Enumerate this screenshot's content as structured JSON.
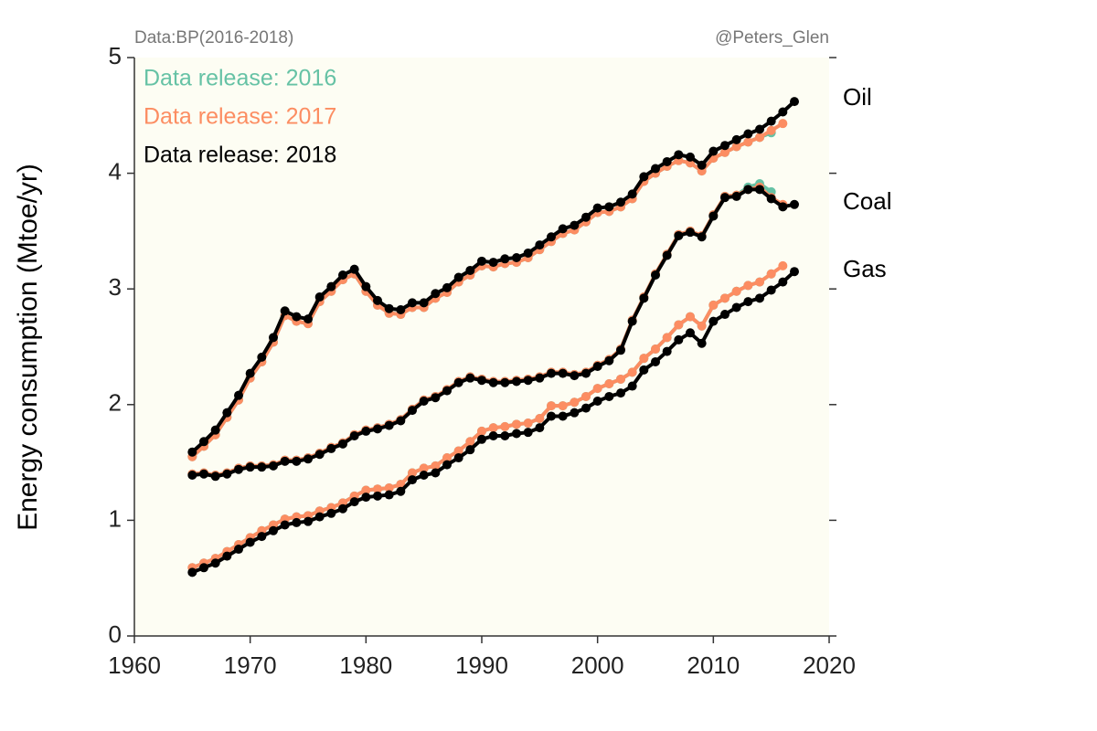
{
  "chart_data": {
    "type": "line",
    "source": "Data:BP(2016-2018)",
    "credit": "@Peters_Glen",
    "ylabel": "Energy consumption (Mtoe/yr)",
    "fuels": [
      "Oil",
      "Coal",
      "Gas"
    ],
    "x": [
      1965,
      1966,
      1967,
      1968,
      1969,
      1970,
      1971,
      1972,
      1973,
      1974,
      1975,
      1976,
      1977,
      1978,
      1979,
      1980,
      1981,
      1982,
      1983,
      1984,
      1985,
      1986,
      1987,
      1988,
      1989,
      1990,
      1991,
      1992,
      1993,
      1994,
      1995,
      1996,
      1997,
      1998,
      1999,
      2000,
      2001,
      2002,
      2003,
      2004,
      2005,
      2006,
      2007,
      2008,
      2009,
      2010,
      2011,
      2012,
      2013,
      2014,
      2015,
      2016,
      2017
    ],
    "series": [
      {
        "name": "Data release: 2016",
        "color": "#66c2a5",
        "values": [
          [
            1.55,
            1.64,
            1.74,
            1.89,
            2.04,
            2.23,
            2.37,
            2.54,
            2.77,
            2.72,
            2.7,
            2.89,
            2.98,
            3.08,
            3.13,
            2.98,
            2.86,
            2.79,
            2.78,
            2.84,
            2.84,
            2.92,
            2.97,
            3.06,
            3.12,
            3.2,
            3.19,
            3.22,
            3.23,
            3.27,
            3.34,
            3.41,
            3.48,
            3.51,
            3.58,
            3.66,
            3.67,
            3.71,
            3.78,
            3.93,
            4.0,
            4.06,
            4.11,
            4.09,
            4.02,
            4.13,
            4.18,
            4.23,
            4.27,
            4.31,
            4.35,
            null,
            null
          ],
          [
            1.4,
            1.41,
            1.39,
            1.41,
            1.45,
            1.47,
            1.47,
            1.48,
            1.52,
            1.52,
            1.54,
            1.58,
            1.63,
            1.67,
            1.74,
            1.78,
            1.8,
            1.83,
            1.87,
            1.96,
            2.04,
            2.07,
            2.13,
            2.2,
            2.24,
            2.22,
            2.2,
            2.2,
            2.21,
            2.22,
            2.24,
            2.28,
            2.28,
            2.26,
            2.28,
            2.34,
            2.39,
            2.48,
            2.73,
            2.93,
            3.13,
            3.3,
            3.47,
            3.5,
            3.46,
            3.64,
            3.8,
            3.81,
            3.88,
            3.91,
            3.84,
            null,
            null
          ],
          [
            0.59,
            0.63,
            0.67,
            0.73,
            0.79,
            0.85,
            0.91,
            0.96,
            1.01,
            1.03,
            1.04,
            1.08,
            1.11,
            1.15,
            1.21,
            1.26,
            1.27,
            1.28,
            1.31,
            1.41,
            1.45,
            1.47,
            1.54,
            1.6,
            1.68,
            1.77,
            1.8,
            1.81,
            1.83,
            1.84,
            1.88,
            1.99,
            1.99,
            2.02,
            2.07,
            2.14,
            2.18,
            2.22,
            2.28,
            2.4,
            2.48,
            2.58,
            2.69,
            2.76,
            2.68,
            2.86,
            2.92,
            2.98,
            3.03,
            3.06,
            3.13,
            null,
            null
          ]
        ]
      },
      {
        "name": "Data release: 2017",
        "color": "#fc8d62",
        "values": [
          [
            1.55,
            1.64,
            1.74,
            1.89,
            2.04,
            2.23,
            2.37,
            2.54,
            2.77,
            2.72,
            2.7,
            2.89,
            2.98,
            3.08,
            3.13,
            2.98,
            2.86,
            2.79,
            2.78,
            2.84,
            2.84,
            2.92,
            2.97,
            3.06,
            3.12,
            3.2,
            3.19,
            3.22,
            3.23,
            3.27,
            3.34,
            3.41,
            3.48,
            3.51,
            3.58,
            3.66,
            3.67,
            3.71,
            3.78,
            3.93,
            4.0,
            4.06,
            4.11,
            4.09,
            4.02,
            4.13,
            4.18,
            4.23,
            4.27,
            4.31,
            4.37,
            4.43,
            null
          ],
          [
            1.4,
            1.41,
            1.39,
            1.41,
            1.45,
            1.47,
            1.47,
            1.48,
            1.52,
            1.52,
            1.54,
            1.58,
            1.63,
            1.67,
            1.74,
            1.78,
            1.8,
            1.83,
            1.87,
            1.96,
            2.04,
            2.07,
            2.13,
            2.2,
            2.24,
            2.22,
            2.2,
            2.2,
            2.21,
            2.22,
            2.24,
            2.28,
            2.28,
            2.26,
            2.28,
            2.34,
            2.39,
            2.48,
            2.73,
            2.93,
            3.13,
            3.3,
            3.47,
            3.5,
            3.46,
            3.64,
            3.8,
            3.81,
            3.86,
            3.88,
            3.79,
            3.73,
            null
          ],
          [
            0.59,
            0.63,
            0.67,
            0.73,
            0.79,
            0.85,
            0.91,
            0.96,
            1.01,
            1.03,
            1.04,
            1.08,
            1.11,
            1.15,
            1.21,
            1.26,
            1.27,
            1.28,
            1.31,
            1.41,
            1.45,
            1.47,
            1.54,
            1.6,
            1.68,
            1.77,
            1.8,
            1.81,
            1.83,
            1.84,
            1.88,
            1.99,
            1.99,
            2.02,
            2.07,
            2.14,
            2.18,
            2.22,
            2.28,
            2.4,
            2.48,
            2.58,
            2.69,
            2.76,
            2.68,
            2.86,
            2.92,
            2.98,
            3.03,
            3.06,
            3.13,
            3.2,
            null
          ]
        ]
      },
      {
        "name": "Data release: 2018",
        "color": "#000000",
        "values": [
          [
            1.59,
            1.68,
            1.78,
            1.93,
            2.08,
            2.27,
            2.41,
            2.58,
            2.81,
            2.76,
            2.74,
            2.93,
            3.02,
            3.12,
            3.17,
            3.02,
            2.9,
            2.83,
            2.82,
            2.88,
            2.88,
            2.96,
            3.01,
            3.1,
            3.16,
            3.24,
            3.23,
            3.26,
            3.27,
            3.31,
            3.38,
            3.45,
            3.52,
            3.55,
            3.62,
            3.7,
            3.71,
            3.75,
            3.82,
            3.97,
            4.04,
            4.1,
            4.16,
            4.14,
            4.07,
            4.19,
            4.24,
            4.29,
            4.34,
            4.38,
            4.45,
            4.53,
            4.62
          ],
          [
            1.39,
            1.4,
            1.38,
            1.4,
            1.44,
            1.46,
            1.46,
            1.47,
            1.51,
            1.51,
            1.53,
            1.57,
            1.62,
            1.66,
            1.73,
            1.77,
            1.79,
            1.82,
            1.86,
            1.95,
            2.03,
            2.06,
            2.12,
            2.19,
            2.23,
            2.21,
            2.19,
            2.19,
            2.2,
            2.21,
            2.23,
            2.27,
            2.27,
            2.25,
            2.27,
            2.33,
            2.38,
            2.47,
            2.72,
            2.92,
            3.12,
            3.29,
            3.46,
            3.49,
            3.45,
            3.63,
            3.79,
            3.8,
            3.86,
            3.86,
            3.78,
            3.71,
            3.73
          ],
          [
            0.55,
            0.59,
            0.63,
            0.69,
            0.75,
            0.81,
            0.86,
            0.91,
            0.96,
            0.98,
            0.99,
            1.03,
            1.06,
            1.1,
            1.16,
            1.2,
            1.21,
            1.22,
            1.25,
            1.35,
            1.39,
            1.41,
            1.48,
            1.54,
            1.61,
            1.7,
            1.73,
            1.73,
            1.75,
            1.76,
            1.8,
            1.9,
            1.9,
            1.93,
            1.97,
            2.03,
            2.07,
            2.1,
            2.16,
            2.3,
            2.37,
            2.46,
            2.56,
            2.62,
            2.53,
            2.72,
            2.78,
            2.84,
            2.89,
            2.92,
            2.99,
            3.06,
            3.15
          ]
        ]
      }
    ],
    "xlim": [
      1960,
      2020
    ],
    "xticks": [
      1960,
      1970,
      1980,
      1990,
      2000,
      2010,
      2020
    ],
    "ylim": [
      0,
      5
    ],
    "yticks": [
      0,
      1,
      2,
      3,
      4,
      5
    ],
    "legend": "upper left"
  }
}
